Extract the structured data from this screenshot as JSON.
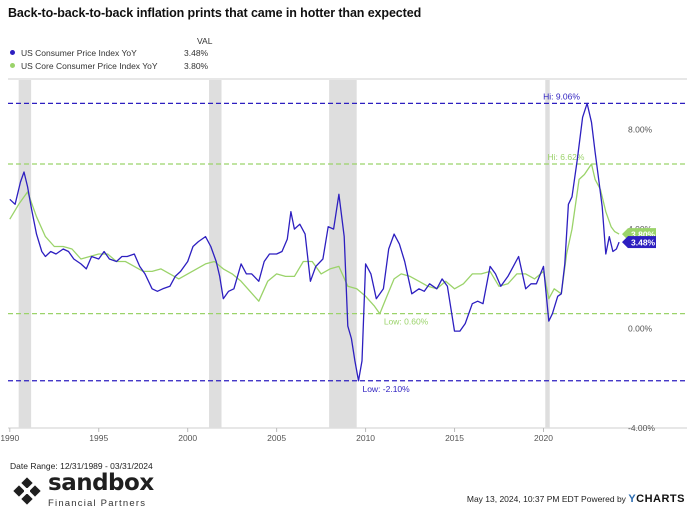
{
  "title": "Back-to-back-to-back inflation prints that came in hotter than expected",
  "legend": {
    "header": "VAL",
    "items": [
      {
        "name": "US Consumer Price Index YoY",
        "value": "3.48%",
        "color": "#2d1fc0"
      },
      {
        "name": "US Core Consumer Price Index YoY",
        "value": "3.80%",
        "color": "#9bd36a"
      }
    ]
  },
  "footer": {
    "date_range": "Date Range: 12/31/1989 - 03/31/2024",
    "timestamp": "May 13, 2024, 10:37 PM EDT Powered by",
    "brand": "CHARTS",
    "brand_prefix": "Y"
  },
  "logo": {
    "name": "sandbox",
    "subtitle": "Financial Partners"
  },
  "chart_data": {
    "type": "line",
    "xlim": [
      1989.9,
      2024.3
    ],
    "ylim": [
      -4.0,
      10.0
    ],
    "x_ticks": [
      1990,
      1995,
      2000,
      2005,
      2010,
      2015,
      2020
    ],
    "x_tick_labels": [
      "1990",
      "1995",
      "2000",
      "2005",
      "2010",
      "2015",
      "2020"
    ],
    "y_ticks": [
      -4.0,
      0.0,
      4.0,
      8.0
    ],
    "y_tick_labels": [
      "-4.00%",
      "0.00%",
      "4.00%",
      "8.00%"
    ],
    "grid": false,
    "recessions": [
      [
        1990.5,
        1991.2
      ],
      [
        2001.2,
        2001.9
      ],
      [
        2007.95,
        2009.5
      ],
      [
        2020.1,
        2020.35
      ]
    ],
    "reference_lines": [
      {
        "label": "Hi: 9.06%",
        "value": 9.06,
        "color": "#2d1fc0"
      },
      {
        "label": "Hi: 6.62%",
        "value": 6.62,
        "color": "#9bd36a"
      },
      {
        "label": "Low: 0.60%",
        "value": 0.6,
        "color": "#9bd36a"
      },
      {
        "label": "Low: -2.10%",
        "value": -2.1,
        "color": "#2d1fc0"
      }
    ],
    "end_labels": [
      {
        "label": "3.80%",
        "value": 3.8,
        "color": "#9bd36a"
      },
      {
        "label": "3.48%",
        "value": 3.48,
        "color": "#2d1fc0"
      }
    ],
    "series": [
      {
        "name": "US Consumer Price Index YoY",
        "color": "#2d1fc0",
        "x": [
          1990.0,
          1990.3,
          1990.6,
          1990.8,
          1991.0,
          1991.2,
          1991.5,
          1991.8,
          1992.0,
          1992.3,
          1992.6,
          1993.0,
          1993.3,
          1993.6,
          1994.0,
          1994.3,
          1994.6,
          1995.0,
          1995.3,
          1995.6,
          1996.0,
          1996.3,
          1996.6,
          1997.0,
          1997.3,
          1997.6,
          1998.0,
          1998.3,
          1998.6,
          1999.0,
          1999.3,
          1999.6,
          2000.0,
          2000.3,
          2000.6,
          2001.0,
          2001.3,
          2001.6,
          2001.8,
          2002.0,
          2002.3,
          2002.6,
          2003.0,
          2003.3,
          2003.6,
          2004.0,
          2004.3,
          2004.6,
          2005.0,
          2005.3,
          2005.6,
          2005.8,
          2006.0,
          2006.3,
          2006.6,
          2006.9,
          2007.2,
          2007.6,
          2007.9,
          2008.2,
          2008.5,
          2008.8,
          2009.0,
          2009.2,
          2009.4,
          2009.6,
          2009.8,
          2010.0,
          2010.3,
          2010.6,
          2011.0,
          2011.3,
          2011.6,
          2011.9,
          2012.2,
          2012.6,
          2013.0,
          2013.3,
          2013.6,
          2014.0,
          2014.3,
          2014.6,
          2015.0,
          2015.3,
          2015.6,
          2016.0,
          2016.3,
          2016.6,
          2017.0,
          2017.3,
          2017.6,
          2018.0,
          2018.3,
          2018.6,
          2019.0,
          2019.3,
          2019.6,
          2020.0,
          2020.3,
          2020.5,
          2020.8,
          2021.0,
          2021.2,
          2021.4,
          2021.6,
          2021.9,
          2022.2,
          2022.45,
          2022.7,
          2022.9,
          2023.1,
          2023.3,
          2023.5,
          2023.7,
          2023.9,
          2024.1,
          2024.25
        ],
        "values": [
          5.2,
          5.0,
          5.9,
          6.3,
          5.7,
          4.9,
          3.8,
          3.1,
          2.9,
          3.1,
          3.0,
          3.2,
          3.1,
          2.8,
          2.6,
          2.4,
          2.9,
          2.8,
          3.1,
          2.8,
          2.7,
          2.9,
          2.9,
          3.0,
          2.5,
          2.2,
          1.6,
          1.5,
          1.6,
          1.7,
          2.1,
          2.3,
          2.7,
          3.3,
          3.5,
          3.7,
          3.3,
          2.7,
          2.1,
          1.2,
          1.5,
          1.6,
          2.6,
          2.2,
          2.2,
          1.9,
          2.7,
          3.0,
          3.0,
          3.1,
          3.6,
          4.7,
          4.0,
          4.2,
          3.8,
          1.9,
          2.5,
          2.8,
          4.1,
          4.0,
          5.4,
          3.7,
          0.1,
          -0.4,
          -1.3,
          -2.1,
          -1.3,
          2.6,
          2.2,
          1.2,
          1.6,
          3.2,
          3.8,
          3.4,
          2.7,
          1.4,
          1.6,
          1.5,
          1.8,
          1.6,
          2.0,
          1.7,
          -0.1,
          -0.1,
          0.2,
          1.0,
          1.1,
          1.0,
          2.5,
          2.2,
          1.7,
          2.1,
          2.5,
          2.9,
          1.6,
          1.8,
          1.8,
          2.5,
          0.3,
          0.6,
          1.3,
          1.4,
          2.6,
          5.0,
          5.3,
          6.8,
          8.5,
          9.06,
          8.3,
          7.1,
          6.0,
          4.9,
          3.0,
          3.7,
          3.1,
          3.2,
          3.48
        ]
      },
      {
        "name": "US Core Consumer Price Index YoY",
        "color": "#9bd36a",
        "x": [
          1990.0,
          1990.5,
          1991.0,
          1991.5,
          1992.0,
          1992.5,
          1993.0,
          1993.5,
          1994.0,
          1994.5,
          1995.0,
          1995.5,
          1996.0,
          1996.5,
          1997.0,
          1997.5,
          1998.0,
          1998.5,
          1999.0,
          1999.5,
          2000.0,
          2000.5,
          2001.0,
          2001.5,
          2002.0,
          2002.5,
          2003.0,
          2003.5,
          2004.0,
          2004.5,
          2005.0,
          2005.5,
          2006.0,
          2006.5,
          2007.0,
          2007.5,
          2008.0,
          2008.5,
          2009.0,
          2009.5,
          2010.0,
          2010.5,
          2010.8,
          2011.2,
          2011.6,
          2012.0,
          2012.5,
          2013.0,
          2013.5,
          2014.0,
          2014.5,
          2015.0,
          2015.5,
          2016.0,
          2016.5,
          2017.0,
          2017.5,
          2018.0,
          2018.5,
          2019.0,
          2019.5,
          2020.0,
          2020.3,
          2020.6,
          2021.0,
          2021.3,
          2021.6,
          2022.0,
          2022.3,
          2022.7,
          2022.9,
          2023.2,
          2023.5,
          2023.8,
          2024.0,
          2024.25
        ],
        "values": [
          4.4,
          5.0,
          5.5,
          4.5,
          3.7,
          3.3,
          3.3,
          3.2,
          2.8,
          2.9,
          3.0,
          3.0,
          2.7,
          2.7,
          2.5,
          2.3,
          2.3,
          2.4,
          2.2,
          2.0,
          2.2,
          2.4,
          2.6,
          2.7,
          2.4,
          2.2,
          1.9,
          1.5,
          1.1,
          1.9,
          2.2,
          2.1,
          2.1,
          2.7,
          2.7,
          2.2,
          2.4,
          2.5,
          1.7,
          1.6,
          1.3,
          0.9,
          0.6,
          1.3,
          2.0,
          2.2,
          2.1,
          1.9,
          1.7,
          1.6,
          1.9,
          1.6,
          1.8,
          2.2,
          2.2,
          2.3,
          1.7,
          1.8,
          2.2,
          2.2,
          2.0,
          2.3,
          1.2,
          1.6,
          1.4,
          3.0,
          4.0,
          6.0,
          6.2,
          6.62,
          6.0,
          5.6,
          4.7,
          4.1,
          3.9,
          3.8
        ]
      }
    ]
  }
}
